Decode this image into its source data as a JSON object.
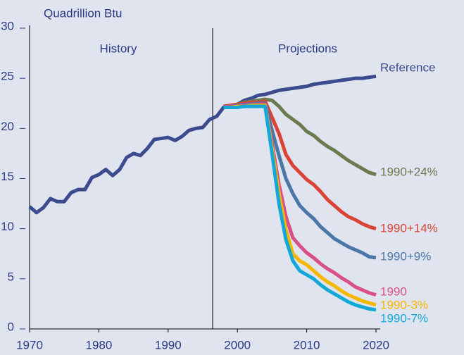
{
  "chart_data": {
    "type": "line",
    "ylabel": "Quadrillion Btu",
    "annotations": [
      "History",
      "Projections"
    ],
    "xlim": [
      1970,
      2020
    ],
    "xticks": [
      1970,
      1980,
      1990,
      2000,
      2010,
      2020
    ],
    "ylim": [
      0,
      30
    ],
    "yticks": [
      0,
      5,
      10,
      15,
      20,
      25,
      30
    ],
    "series": [
      {
        "name": "Reference",
        "color": "#3c4a8e",
        "x": [
          1970,
          1971,
          1972,
          1973,
          1974,
          1975,
          1976,
          1977,
          1978,
          1979,
          1980,
          1981,
          1982,
          1983,
          1984,
          1985,
          1986,
          1987,
          1988,
          1989,
          1990,
          1991,
          1992,
          1993,
          1994,
          1995,
          1996,
          1997,
          1998,
          1999,
          2000,
          2001,
          2002,
          2003,
          2004,
          2005,
          2006,
          2007,
          2008,
          2009,
          2010,
          2011,
          2012,
          2013,
          2014,
          2015,
          2016,
          2017,
          2018,
          2019,
          2020
        ],
        "values": [
          12.2,
          11.6,
          12.1,
          13.0,
          12.7,
          12.7,
          13.6,
          13.9,
          13.9,
          15.1,
          15.4,
          15.9,
          15.3,
          15.9,
          17.1,
          17.5,
          17.3,
          18.0,
          18.9,
          19.0,
          19.1,
          18.8,
          19.2,
          19.8,
          20.0,
          20.1,
          20.9,
          21.2,
          22.1,
          22.1,
          22.4,
          22.8,
          23.0,
          23.3,
          23.4,
          23.6,
          23.8,
          23.9,
          24.0,
          24.1,
          24.2,
          24.4,
          24.5,
          24.6,
          24.7,
          24.8,
          24.9,
          25.0,
          25.0,
          25.1,
          25.2
        ]
      },
      {
        "name": "1990+24%",
        "color": "#6b7a4f",
        "x": [
          1998,
          1999,
          2000,
          2001,
          2002,
          2003,
          2004,
          2005,
          2006,
          2007,
          2008,
          2009,
          2010,
          2011,
          2012,
          2013,
          2014,
          2015,
          2016,
          2017,
          2018,
          2019,
          2020
        ],
        "values": [
          22.2,
          22.3,
          22.4,
          22.6,
          22.7,
          22.8,
          22.9,
          22.8,
          22.2,
          21.4,
          20.9,
          20.4,
          19.7,
          19.3,
          18.7,
          18.2,
          17.8,
          17.3,
          16.8,
          16.4,
          16.0,
          15.6,
          15.4
        ]
      },
      {
        "name": "1990+14%",
        "color": "#d94436",
        "x": [
          1998,
          1999,
          2000,
          2001,
          2002,
          2003,
          2004,
          2005,
          2006,
          2007,
          2008,
          2009,
          2010,
          2011,
          2012,
          2013,
          2014,
          2015,
          2016,
          2017,
          2018,
          2019,
          2020
        ],
        "values": [
          22.2,
          22.3,
          22.4,
          22.5,
          22.6,
          22.6,
          22.7,
          21.1,
          19.5,
          17.4,
          16.3,
          15.6,
          14.9,
          14.4,
          13.7,
          12.9,
          12.3,
          11.7,
          11.2,
          10.9,
          10.5,
          10.2,
          10.0
        ]
      },
      {
        "name": "1990+9%",
        "color": "#4a77a8",
        "x": [
          1998,
          1999,
          2000,
          2001,
          2002,
          2003,
          2004,
          2005,
          2006,
          2007,
          2008,
          2009,
          2010,
          2011,
          2012,
          2013,
          2014,
          2015,
          2016,
          2017,
          2018,
          2019,
          2020
        ],
        "values": [
          22.1,
          22.2,
          22.3,
          22.4,
          22.4,
          22.5,
          22.5,
          19.8,
          17.3,
          15.0,
          13.5,
          12.3,
          11.6,
          11.0,
          10.2,
          9.6,
          9.0,
          8.6,
          8.2,
          7.9,
          7.6,
          7.2,
          7.1
        ]
      },
      {
        "name": "1990",
        "color": "#d94f8a",
        "x": [
          1998,
          1999,
          2000,
          2001,
          2002,
          2003,
          2004,
          2005,
          2006,
          2007,
          2008,
          2009,
          2010,
          2011,
          2012,
          2013,
          2014,
          2015,
          2016,
          2017,
          2018,
          2019,
          2020
        ],
        "values": [
          22.1,
          22.2,
          22.2,
          22.3,
          22.3,
          22.4,
          22.4,
          18.5,
          14.4,
          11.2,
          9.1,
          8.3,
          7.6,
          7.1,
          6.5,
          6.0,
          5.6,
          5.1,
          4.7,
          4.2,
          3.9,
          3.6,
          3.4
        ]
      },
      {
        "name": "1990-3%",
        "color": "#f5b800",
        "x": [
          1998,
          1999,
          2000,
          2001,
          2002,
          2003,
          2004,
          2005,
          2006,
          2007,
          2008,
          2009,
          2010,
          2011,
          2012,
          2013,
          2014,
          2015,
          2016,
          2017,
          2018,
          2019,
          2020
        ],
        "values": [
          22.1,
          22.1,
          22.2,
          22.2,
          22.3,
          22.3,
          22.3,
          18.0,
          13.5,
          9.9,
          7.5,
          6.8,
          6.4,
          5.8,
          5.2,
          4.7,
          4.3,
          3.8,
          3.4,
          3.1,
          2.8,
          2.6,
          2.4
        ]
      },
      {
        "name": "1990-7%",
        "color": "#14a8d8",
        "x": [
          1998,
          1999,
          2000,
          2001,
          2002,
          2003,
          2004,
          2005,
          2006,
          2007,
          2008,
          2009,
          2010,
          2011,
          2012,
          2013,
          2014,
          2015,
          2016,
          2017,
          2018,
          2019,
          2020
        ],
        "values": [
          22.1,
          22.1,
          22.1,
          22.2,
          22.2,
          22.2,
          22.2,
          17.5,
          12.5,
          8.9,
          6.8,
          5.8,
          5.4,
          5.0,
          4.4,
          3.9,
          3.5,
          3.1,
          2.7,
          2.4,
          2.2,
          2.0,
          1.9
        ]
      }
    ]
  }
}
